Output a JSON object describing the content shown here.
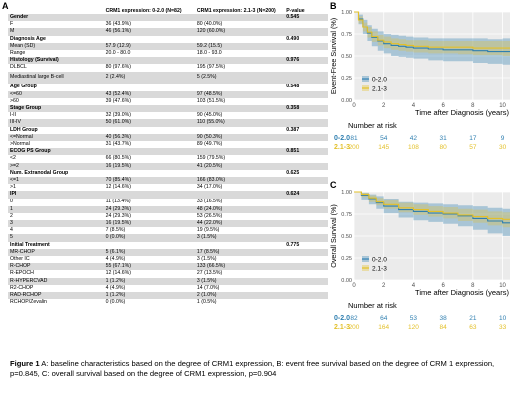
{
  "panel_a_letter": "A",
  "panel_b_letter": "B",
  "panel_c_letter": "C",
  "table": {
    "headers": [
      "",
      "CRM1 expression: 0-2.0 (N=82)",
      "CRM1 expression: 2.1-3 (N=200)",
      "P-value"
    ],
    "rows": [
      {
        "label": "Gender",
        "a": "",
        "b": "",
        "p": "0.545",
        "sec": true
      },
      {
        "label": "F",
        "a": "36 (43.9%)",
        "b": "80 (40.0%)",
        "p": ""
      },
      {
        "label": "M",
        "a": "46 (56.1%)",
        "b": "120 (60.0%)",
        "p": ""
      },
      {
        "label": "Diagnosis Age",
        "a": "",
        "b": "",
        "p": "0.490",
        "sec": true
      },
      {
        "label": "Mean (SD)",
        "a": "57.9 (12.9)",
        "b": "59.2 (15.5)",
        "p": ""
      },
      {
        "label": "Range",
        "a": "20.0 - 80.0",
        "b": "18.0 - 93.0",
        "p": ""
      },
      {
        "label": "Histology (Survival)",
        "a": "",
        "b": "",
        "p": "0.976",
        "sec": true
      },
      {
        "label": "DLBCL",
        "a": "80 (97.6%)",
        "b": "195 (97.5%)",
        "p": ""
      },
      {
        "label": "Mediastinal large B-cell",
        "a": "2 (2.4%)",
        "b": "5 (2.5%)",
        "p": "",
        "wrap": true
      },
      {
        "label": "Age Group",
        "a": "",
        "b": "",
        "p": "0.548",
        "sec": true
      },
      {
        "label": "<=60",
        "a": "43 (52.4%)",
        "b": "97 (48.5%)",
        "p": ""
      },
      {
        "label": ">60",
        "a": "39 (47.6%)",
        "b": "103 (51.5%)",
        "p": ""
      },
      {
        "label": "Stage Group",
        "a": "",
        "b": "",
        "p": "0.358",
        "sec": true
      },
      {
        "label": "I-II",
        "a": "32 (39.0%)",
        "b": "90 (45.0%)",
        "p": ""
      },
      {
        "label": "III-IV",
        "a": "50 (61.0%)",
        "b": "110 (55.0%)",
        "p": ""
      },
      {
        "label": "LDH Group",
        "a": "",
        "b": "",
        "p": "0.387",
        "sec": true
      },
      {
        "label": "<=Normal",
        "a": "40 (56.3%)",
        "b": "90 (50.3%)",
        "p": ""
      },
      {
        "label": ">Normal",
        "a": "31 (43.7%)",
        "b": "89 (49.7%)",
        "p": ""
      },
      {
        "label": "ECOG PS Group",
        "a": "",
        "b": "",
        "p": "0.851",
        "sec": true
      },
      {
        "label": "<2",
        "a": "66 (80.5%)",
        "b": "159 (79.5%)",
        "p": ""
      },
      {
        "label": ">=2",
        "a": "16 (19.5%)",
        "b": "41 (20.5%)",
        "p": ""
      },
      {
        "label": "Num. Extranodal Group",
        "a": "",
        "b": "",
        "p": "0.625",
        "sec": true
      },
      {
        "label": "<=1",
        "a": "70 (85.4%)",
        "b": "166 (83.0%)",
        "p": ""
      },
      {
        "label": ">1",
        "a": "12 (14.6%)",
        "b": "34 (17.0%)",
        "p": ""
      },
      {
        "label": "IPI",
        "a": "",
        "b": "",
        "p": "0.624",
        "sec": true
      },
      {
        "label": "0",
        "a": "11 (13.4%)",
        "b": "33 (16.5%)",
        "p": ""
      },
      {
        "label": "1",
        "a": "24 (29.3%)",
        "b": "48 (24.0%)",
        "p": ""
      },
      {
        "label": "2",
        "a": "24 (29.3%)",
        "b": "53 (26.5%)",
        "p": ""
      },
      {
        "label": "3",
        "a": "16 (19.5%)",
        "b": "44 (22.0%)",
        "p": ""
      },
      {
        "label": "4",
        "a": "7 (8.5%)",
        "b": "19 (9.5%)",
        "p": ""
      },
      {
        "label": "5",
        "a": "0 (0.0%)",
        "b": "3 (1.5%)",
        "p": ""
      },
      {
        "label": "Initial Treatment",
        "a": "",
        "b": "",
        "p": "0.775",
        "sec": true
      },
      {
        "label": "MR-CHOP",
        "a": "5 (6.1%)",
        "b": "17 (8.5%)",
        "p": ""
      },
      {
        "label": "Other IC",
        "a": "4 (4.9%)",
        "b": "3 (1.5%)",
        "p": ""
      },
      {
        "label": "R-CHOP",
        "a": "55 (67.1%)",
        "b": "133 (66.5%)",
        "p": ""
      },
      {
        "label": "R-EPOCH",
        "a": "12 (14.6%)",
        "b": "27 (13.5%)",
        "p": ""
      },
      {
        "label": "R-HYPERCVAD",
        "a": "1 (1.2%)",
        "b": "3 (1.5%)",
        "p": ""
      },
      {
        "label": "R2-CHOP",
        "a": "4 (4.9%)",
        "b": "14 (7.0%)",
        "p": ""
      },
      {
        "label": "RAD-RCHOP",
        "a": "1 (1.2%)",
        "b": "2 (1.0%)",
        "p": ""
      },
      {
        "label": "RCHOP/Zevalin",
        "a": "0 (0.0%)",
        "b": "1 (0.5%)",
        "p": ""
      }
    ]
  },
  "chart_data": [
    {
      "type": "line",
      "panel": "B",
      "ylabel": "Event-Free Survival (%)",
      "xlabel": "Time after Diagnosis (years)",
      "xlim": [
        0,
        10.5
      ],
      "ylim": [
        0,
        1
      ],
      "xticks": [
        0,
        2,
        4,
        6,
        8,
        10
      ],
      "yticks": [
        0.0,
        0.25,
        0.5,
        0.75,
        1.0
      ],
      "yticklabels": [
        "0.00",
        "0.25",
        "0.50",
        "0.75",
        "1.00"
      ],
      "legend_position": "bottom-left",
      "series": [
        {
          "name": "0-2.0",
          "color": "#2f7fb0",
          "x": [
            0,
            0.3,
            0.6,
            0.9,
            1.2,
            1.6,
            2.0,
            2.5,
            3.0,
            3.5,
            4.0,
            5.0,
            6.0,
            7.0,
            8.0,
            9.0,
            10.0,
            10.5
          ],
          "y": [
            1.0,
            0.92,
            0.83,
            0.76,
            0.71,
            0.67,
            0.64,
            0.62,
            0.61,
            0.6,
            0.59,
            0.58,
            0.57,
            0.57,
            0.56,
            0.55,
            0.55,
            0.55
          ],
          "lower": [
            1.0,
            0.86,
            0.75,
            0.67,
            0.61,
            0.56,
            0.53,
            0.5,
            0.49,
            0.48,
            0.47,
            0.45,
            0.44,
            0.44,
            0.42,
            0.41,
            0.4,
            0.4
          ],
          "upper": [
            1.0,
            0.97,
            0.91,
            0.85,
            0.81,
            0.78,
            0.75,
            0.74,
            0.73,
            0.72,
            0.71,
            0.7,
            0.7,
            0.7,
            0.7,
            0.69,
            0.7,
            0.7
          ]
        },
        {
          "name": "2.1-3",
          "color": "#e3c02a",
          "x": [
            0,
            0.3,
            0.6,
            0.9,
            1.2,
            1.6,
            2.0,
            2.5,
            3.0,
            3.5,
            4.0,
            5.0,
            6.0,
            7.0,
            8.0,
            9.0,
            10.0,
            10.5
          ],
          "y": [
            1.0,
            0.91,
            0.83,
            0.77,
            0.72,
            0.68,
            0.66,
            0.64,
            0.63,
            0.62,
            0.61,
            0.6,
            0.6,
            0.6,
            0.59,
            0.59,
            0.59,
            0.59
          ],
          "lower": [
            1.0,
            0.87,
            0.78,
            0.71,
            0.66,
            0.62,
            0.59,
            0.57,
            0.56,
            0.55,
            0.54,
            0.53,
            0.53,
            0.52,
            0.51,
            0.51,
            0.5,
            0.5
          ],
          "upper": [
            1.0,
            0.95,
            0.88,
            0.83,
            0.78,
            0.74,
            0.72,
            0.7,
            0.69,
            0.68,
            0.68,
            0.67,
            0.67,
            0.67,
            0.67,
            0.67,
            0.67,
            0.67
          ]
        }
      ],
      "risk_table": {
        "title": "Number at risk",
        "times": [
          0,
          2,
          4,
          6,
          8,
          10
        ],
        "rows": [
          {
            "name": "0-2.0",
            "color": "#2f7fb0",
            "values": [
              "81",
              "54",
              "42",
              "31",
              "17",
              "9"
            ]
          },
          {
            "name": "2.1-3",
            "color": "#e3c02a",
            "values": [
              "200",
              "145",
              "108",
              "80",
              "57",
              "30"
            ]
          }
        ]
      }
    },
    {
      "type": "line",
      "panel": "C",
      "ylabel": "Overall Survival (%)",
      "xlabel": "Time after Diagnosis (years)",
      "xlim": [
        0,
        10.5
      ],
      "ylim": [
        0,
        1
      ],
      "xticks": [
        0,
        2,
        4,
        6,
        8,
        10
      ],
      "yticks": [
        0.0,
        0.25,
        0.5,
        0.75,
        1.0
      ],
      "yticklabels": [
        "0.00",
        "0.25",
        "0.50",
        "0.75",
        "1.00"
      ],
      "legend_position": "bottom-left",
      "series": [
        {
          "name": "0-2.0",
          "color": "#2f7fb0",
          "x": [
            0,
            0.5,
            1.0,
            1.5,
            2.0,
            3.0,
            4.0,
            5.0,
            6.0,
            7.0,
            8.0,
            9.0,
            10.0,
            10.5
          ],
          "y": [
            1.0,
            0.96,
            0.92,
            0.88,
            0.84,
            0.8,
            0.78,
            0.76,
            0.75,
            0.73,
            0.7,
            0.67,
            0.65,
            0.65
          ],
          "lower": [
            1.0,
            0.91,
            0.86,
            0.81,
            0.76,
            0.71,
            0.68,
            0.66,
            0.64,
            0.61,
            0.57,
            0.53,
            0.5,
            0.5
          ],
          "upper": [
            1.0,
            0.99,
            0.97,
            0.95,
            0.92,
            0.89,
            0.88,
            0.87,
            0.86,
            0.85,
            0.84,
            0.82,
            0.81,
            0.81
          ]
        },
        {
          "name": "2.1-3",
          "color": "#e3c02a",
          "x": [
            0,
            0.5,
            1.0,
            1.5,
            2.0,
            3.0,
            4.0,
            5.0,
            6.0,
            7.0,
            8.0,
            9.0,
            10.0,
            10.5
          ],
          "y": [
            1.0,
            0.97,
            0.93,
            0.89,
            0.86,
            0.82,
            0.8,
            0.78,
            0.76,
            0.74,
            0.72,
            0.7,
            0.69,
            0.69
          ],
          "lower": [
            1.0,
            0.94,
            0.89,
            0.85,
            0.81,
            0.77,
            0.74,
            0.72,
            0.7,
            0.67,
            0.65,
            0.62,
            0.6,
            0.6
          ],
          "upper": [
            1.0,
            0.99,
            0.96,
            0.93,
            0.91,
            0.88,
            0.86,
            0.84,
            0.83,
            0.81,
            0.8,
            0.78,
            0.77,
            0.77
          ]
        }
      ],
      "risk_table": {
        "title": "Number at risk",
        "times": [
          0,
          2,
          4,
          6,
          8,
          10
        ],
        "rows": [
          {
            "name": "0-2.0",
            "color": "#2f7fb0",
            "values": [
              "82",
              "64",
              "53",
              "38",
              "21",
              "10"
            ]
          },
          {
            "name": "2.1-3",
            "color": "#e3c02a",
            "values": [
              "200",
              "164",
              "120",
              "84",
              "63",
              "33"
            ]
          }
        ]
      }
    }
  ],
  "caption": {
    "label": "Figure 1",
    "text": " A:  baseline characteristics based on the degree of CRM1 expression, B:  event free survival  based on the degree of CRM 1 expression, p=0.845, C:  overall  survival  based on the degree of CRM1 expression, p=0.904"
  }
}
